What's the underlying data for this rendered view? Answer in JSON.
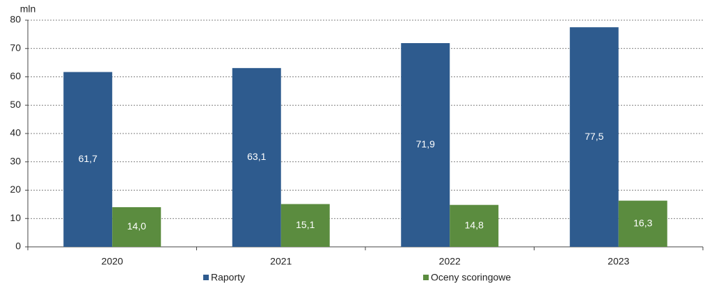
{
  "chart_data": {
    "type": "bar",
    "y_axis_label": "mln",
    "categories": [
      "2020",
      "2021",
      "2022",
      "2023"
    ],
    "series": [
      {
        "name": "Raporty",
        "color": "#2e5b8e",
        "values": [
          61.7,
          63.1,
          71.9,
          77.5
        ],
        "value_labels": [
          "61,7",
          "63,1",
          "71,9",
          "77,5"
        ]
      },
      {
        "name": "Oceny scoringowe",
        "color": "#5b8c3f",
        "values": [
          14.0,
          15.1,
          14.8,
          16.3
        ],
        "value_labels": [
          "14,0",
          "15,1",
          "14,8",
          "16,3"
        ]
      }
    ],
    "ylim": [
      0,
      80
    ],
    "yticks": [
      0,
      10,
      20,
      30,
      40,
      50,
      60,
      70,
      80
    ],
    "grid": true,
    "legend": "bottom"
  }
}
